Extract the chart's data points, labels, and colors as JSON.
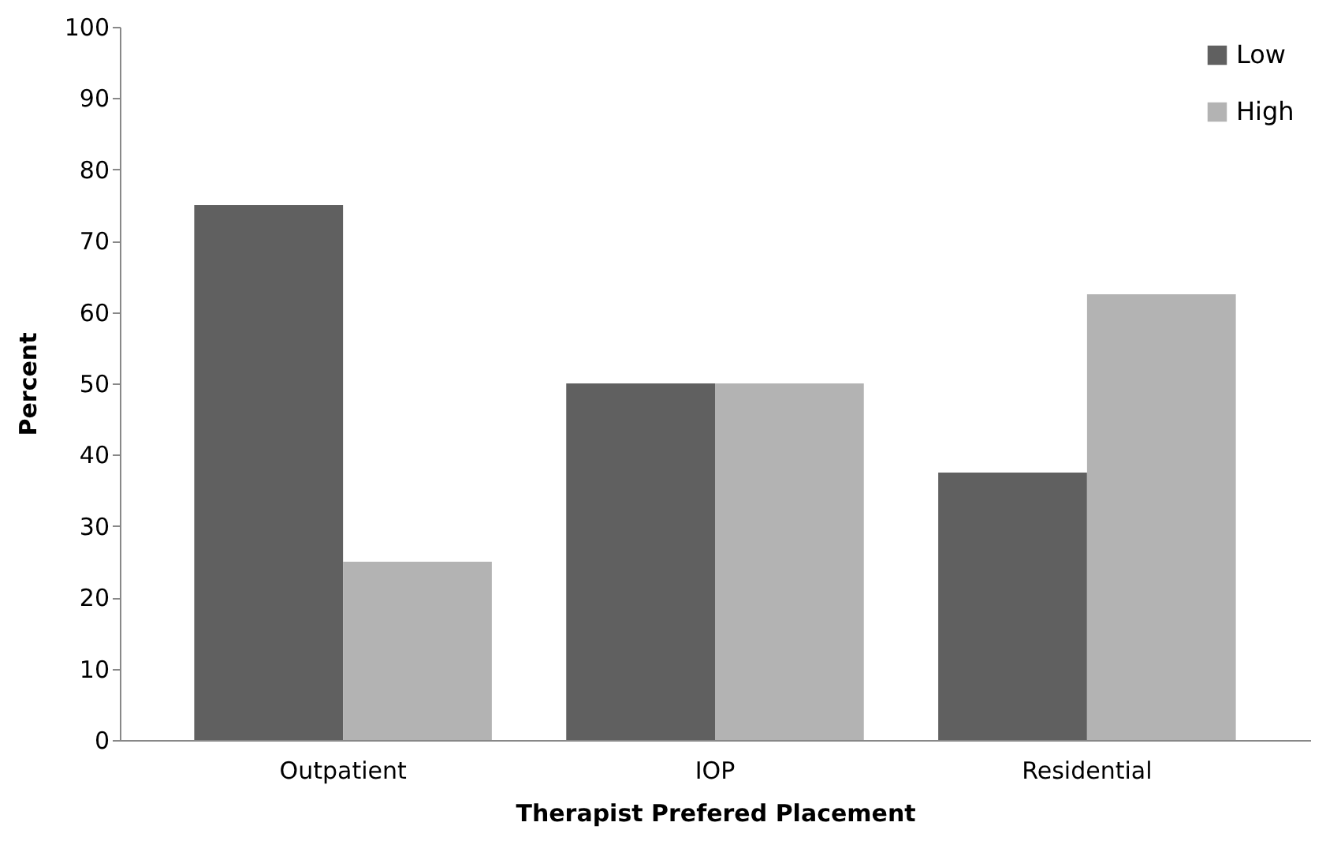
{
  "chart_data": {
    "type": "bar",
    "xlabel": "Therapist Prefered Placement",
    "ylabel": "Percent",
    "categories": [
      "Outpatient",
      "IOP",
      "Residential"
    ],
    "series": [
      {
        "name": "Low",
        "color": "#606060",
        "values": [
          75,
          50,
          37.5
        ]
      },
      {
        "name": "High",
        "color": "#b3b3b3",
        "values": [
          25,
          50,
          62.5
        ]
      }
    ],
    "ylim": [
      0,
      100
    ],
    "yticks": [
      0,
      10,
      20,
      30,
      40,
      50,
      60,
      70,
      80,
      90,
      100
    ],
    "grid": false,
    "legend": "top right"
  }
}
